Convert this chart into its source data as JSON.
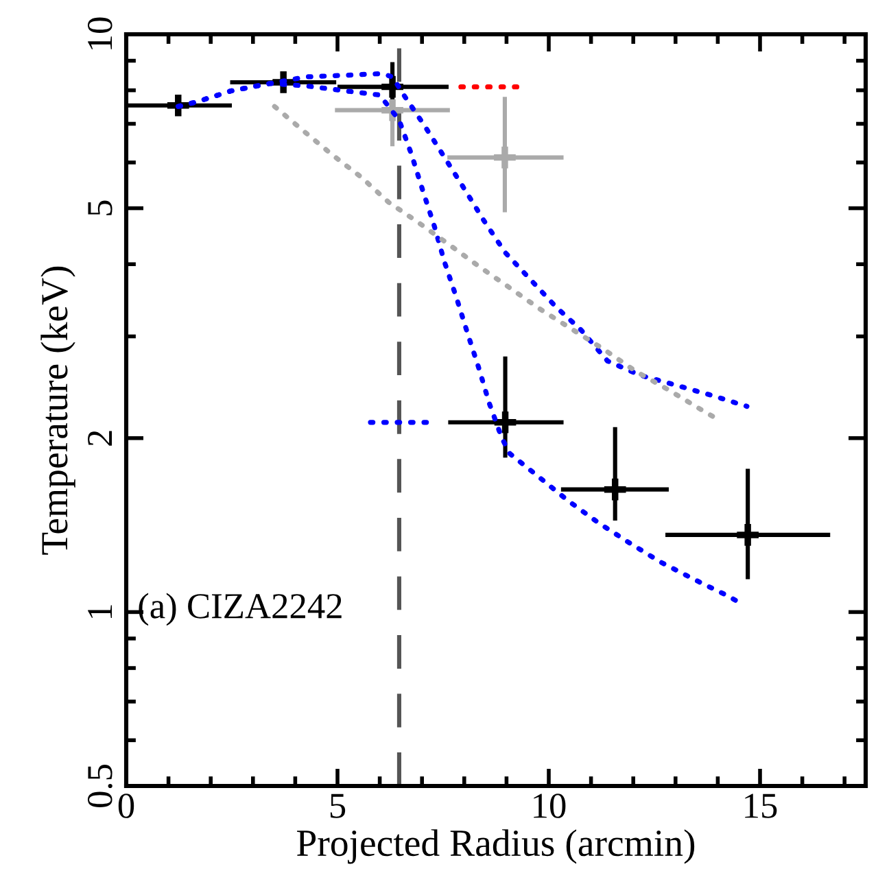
{
  "chart_data": {
    "type": "scatter",
    "xlabel": "Projected Radius (arcmin)",
    "ylabel": "Temperature (keV)",
    "log": "y",
    "xlim": [
      0,
      17.5
    ],
    "xticks": [
      0,
      5,
      10,
      15
    ],
    "ylim": [
      0.5,
      10
    ],
    "yticks": [
      0.5,
      1,
      2,
      5,
      10
    ],
    "grid": false,
    "annotations": [
      "(a) CIZA2242"
    ],
    "ref_lines": [
      {
        "axis": "x",
        "value": 6.46,
        "color": "#555555",
        "line_style": "dashed"
      }
    ],
    "series": [
      {
        "marker": "cross",
        "color": "#000000",
        "x": [
          1.23,
          3.72,
          6.3,
          8.97,
          11.57,
          14.71
        ],
        "values": [
          7.53,
          8.26,
          8.11,
          2.13,
          1.63,
          1.36
        ],
        "xerrors": [
          [
            0,
            2.5
          ],
          [
            2.46,
            4.97
          ],
          [
            5.0,
            7.63
          ],
          [
            7.62,
            10.35
          ],
          [
            10.29,
            12.84
          ],
          [
            12.76,
            16.66
          ]
        ],
        "errors": [
          [
            7.27,
            7.8
          ],
          [
            7.95,
            8.6
          ],
          [
            7.66,
            8.95
          ],
          [
            1.85,
            2.77
          ],
          [
            1.44,
            2.09
          ],
          [
            1.14,
            1.77
          ]
        ]
      },
      {
        "marker": "cross",
        "color": "#aaaaaa",
        "x": [
          6.3,
          8.96
        ],
        "values": [
          7.39,
          6.12
        ],
        "xerrors": [
          [
            4.94,
            7.66
          ],
          [
            7.6,
            10.35
          ]
        ],
        "errors": [
          [
            6.4,
            7.7
          ],
          [
            4.92,
            7.79
          ]
        ]
      },
      {
        "type": "line",
        "line_style": "dotted",
        "color": "#ff0000",
        "x": [
          7.92,
          9.37
        ],
        "values": [
          8.11,
          8.11
        ]
      },
      {
        "type": "line",
        "line_style": "dotted",
        "color": "#0000ff",
        "x": [
          5.78,
          7.11
        ],
        "values": [
          2.13,
          2.13
        ]
      },
      {
        "type": "line",
        "line_style": "dotted",
        "color": "#0000ff",
        "x": [
          1.23,
          1.67,
          2.48,
          3.4,
          4.26,
          5.13,
          6.05,
          6.3,
          6.59,
          7.08,
          7.56,
          8.03,
          8.48,
          8.97,
          9.57,
          10.16,
          10.76,
          11.39,
          12.16,
          13.01,
          13.87,
          14.69
        ],
        "values": [
          7.5,
          7.64,
          7.98,
          8.22,
          8.44,
          8.49,
          8.55,
          8.44,
          7.81,
          6.91,
          6.08,
          5.36,
          4.74,
          4.19,
          3.76,
          3.38,
          3.08,
          2.72,
          2.57,
          2.47,
          2.37,
          2.27
        ]
      },
      {
        "type": "line",
        "line_style": "dotted",
        "color": "#0000ff",
        "x": [
          1.23,
          1.67,
          2.48,
          3.4,
          4.26,
          5.13,
          6.0,
          6.46,
          6.75,
          7.02,
          7.29,
          7.53,
          7.81,
          8.07,
          8.34,
          8.59,
          8.89,
          9.08,
          9.78,
          10.45,
          11.16,
          11.89,
          12.65,
          13.43,
          14.2,
          14.6
        ],
        "values": [
          7.5,
          7.64,
          7.98,
          8.22,
          8.14,
          7.99,
          7.85,
          7.1,
          6.2,
          5.36,
          4.66,
          4.04,
          3.51,
          3.05,
          2.65,
          2.3,
          2.0,
          1.88,
          1.71,
          1.56,
          1.43,
          1.32,
          1.22,
          1.14,
          1.07,
          1.03
        ]
      },
      {
        "type": "line",
        "line_style": "dotted",
        "color": "#aaaaaa",
        "x": [
          3.51,
          4.21,
          4.86,
          5.56,
          6.21,
          6.92,
          7.67,
          8.38,
          9.08,
          9.78,
          10.54,
          11.3,
          12.06,
          12.81,
          13.52,
          13.93
        ],
        "values": [
          7.5,
          6.79,
          6.2,
          5.66,
          5.12,
          4.72,
          4.31,
          3.95,
          3.64,
          3.35,
          3.09,
          2.85,
          2.61,
          2.43,
          2.26,
          2.17
        ]
      }
    ]
  }
}
